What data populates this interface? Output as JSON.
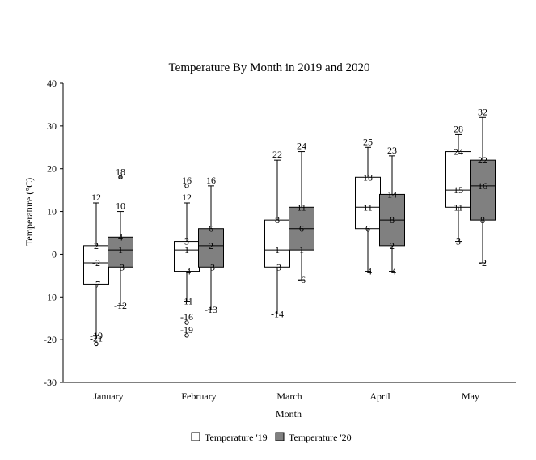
{
  "chart_data": {
    "type": "boxplot",
    "title": "Temperature By Month in 2019 and 2020",
    "xlabel": "Month",
    "ylabel": "Temperature (°C)",
    "ylim": [
      -30,
      40
    ],
    "yticks": [
      -30,
      -20,
      -10,
      0,
      10,
      20,
      30,
      40
    ],
    "categories": [
      "January",
      "February",
      "March",
      "April",
      "May"
    ],
    "legend_position": "bottom",
    "grid": false,
    "series": [
      {
        "name": "Temperature '19",
        "color": "#ffffff",
        "boxes": [
          {
            "min": -19,
            "q1": -7,
            "median": -2,
            "q3": 2,
            "max": 12,
            "outliers": [
              -21
            ],
            "labels": [
              "12",
              "2",
              "-2",
              "-7",
              "-19",
              "-21"
            ]
          },
          {
            "min": -11,
            "q1": -4,
            "median": 1,
            "q3": 3,
            "max": 12,
            "outliers": [
              16,
              -16,
              -19
            ],
            "labels": [
              "16",
              "12",
              "3",
              "1",
              "-4",
              "-11",
              "-16",
              "-19"
            ]
          },
          {
            "min": -14,
            "q1": -3,
            "median": 1,
            "q3": 8,
            "max": 22,
            "outliers": [],
            "labels": [
              "22",
              "8",
              "1",
              "-3",
              "-14"
            ]
          },
          {
            "min": -4,
            "q1": 6,
            "median": 11,
            "q3": 18,
            "max": 25,
            "outliers": [],
            "labels": [
              "25",
              "18",
              "11",
              "6",
              "-4"
            ]
          },
          {
            "min": 3,
            "q1": 11,
            "median": 15,
            "q3": 24,
            "max": 28,
            "outliers": [],
            "labels": [
              "28",
              "24",
              "15",
              "11",
              "3"
            ]
          }
        ]
      },
      {
        "name": "Temperature '20",
        "color": "#808080",
        "boxes": [
          {
            "min": -12,
            "q1": -3,
            "median": 1,
            "q3": 4,
            "max": 10,
            "outliers": [
              18
            ],
            "labels": [
              "18",
              "10",
              "4",
              "1",
              "-3",
              "-12"
            ]
          },
          {
            "min": -13,
            "q1": -3,
            "median": 2,
            "q3": 6,
            "max": 16,
            "outliers": [],
            "labels": [
              "16",
              "6",
              "2",
              "-3",
              "-13"
            ]
          },
          {
            "min": -6,
            "q1": 1,
            "median": 6,
            "q3": 11,
            "max": 24,
            "outliers": [],
            "labels": [
              "24",
              "11",
              "6",
              "1",
              "-6"
            ]
          },
          {
            "min": -4,
            "q1": 2,
            "median": 8,
            "q3": 14,
            "max": 23,
            "outliers": [],
            "labels": [
              "23",
              "14",
              "8",
              "2",
              "-4"
            ]
          },
          {
            "min": -2,
            "q1": 8,
            "median": 16,
            "q3": 22,
            "max": 32,
            "outliers": [],
            "labels": [
              "32",
              "22",
              "16",
              "8",
              "-2"
            ]
          }
        ]
      }
    ]
  }
}
